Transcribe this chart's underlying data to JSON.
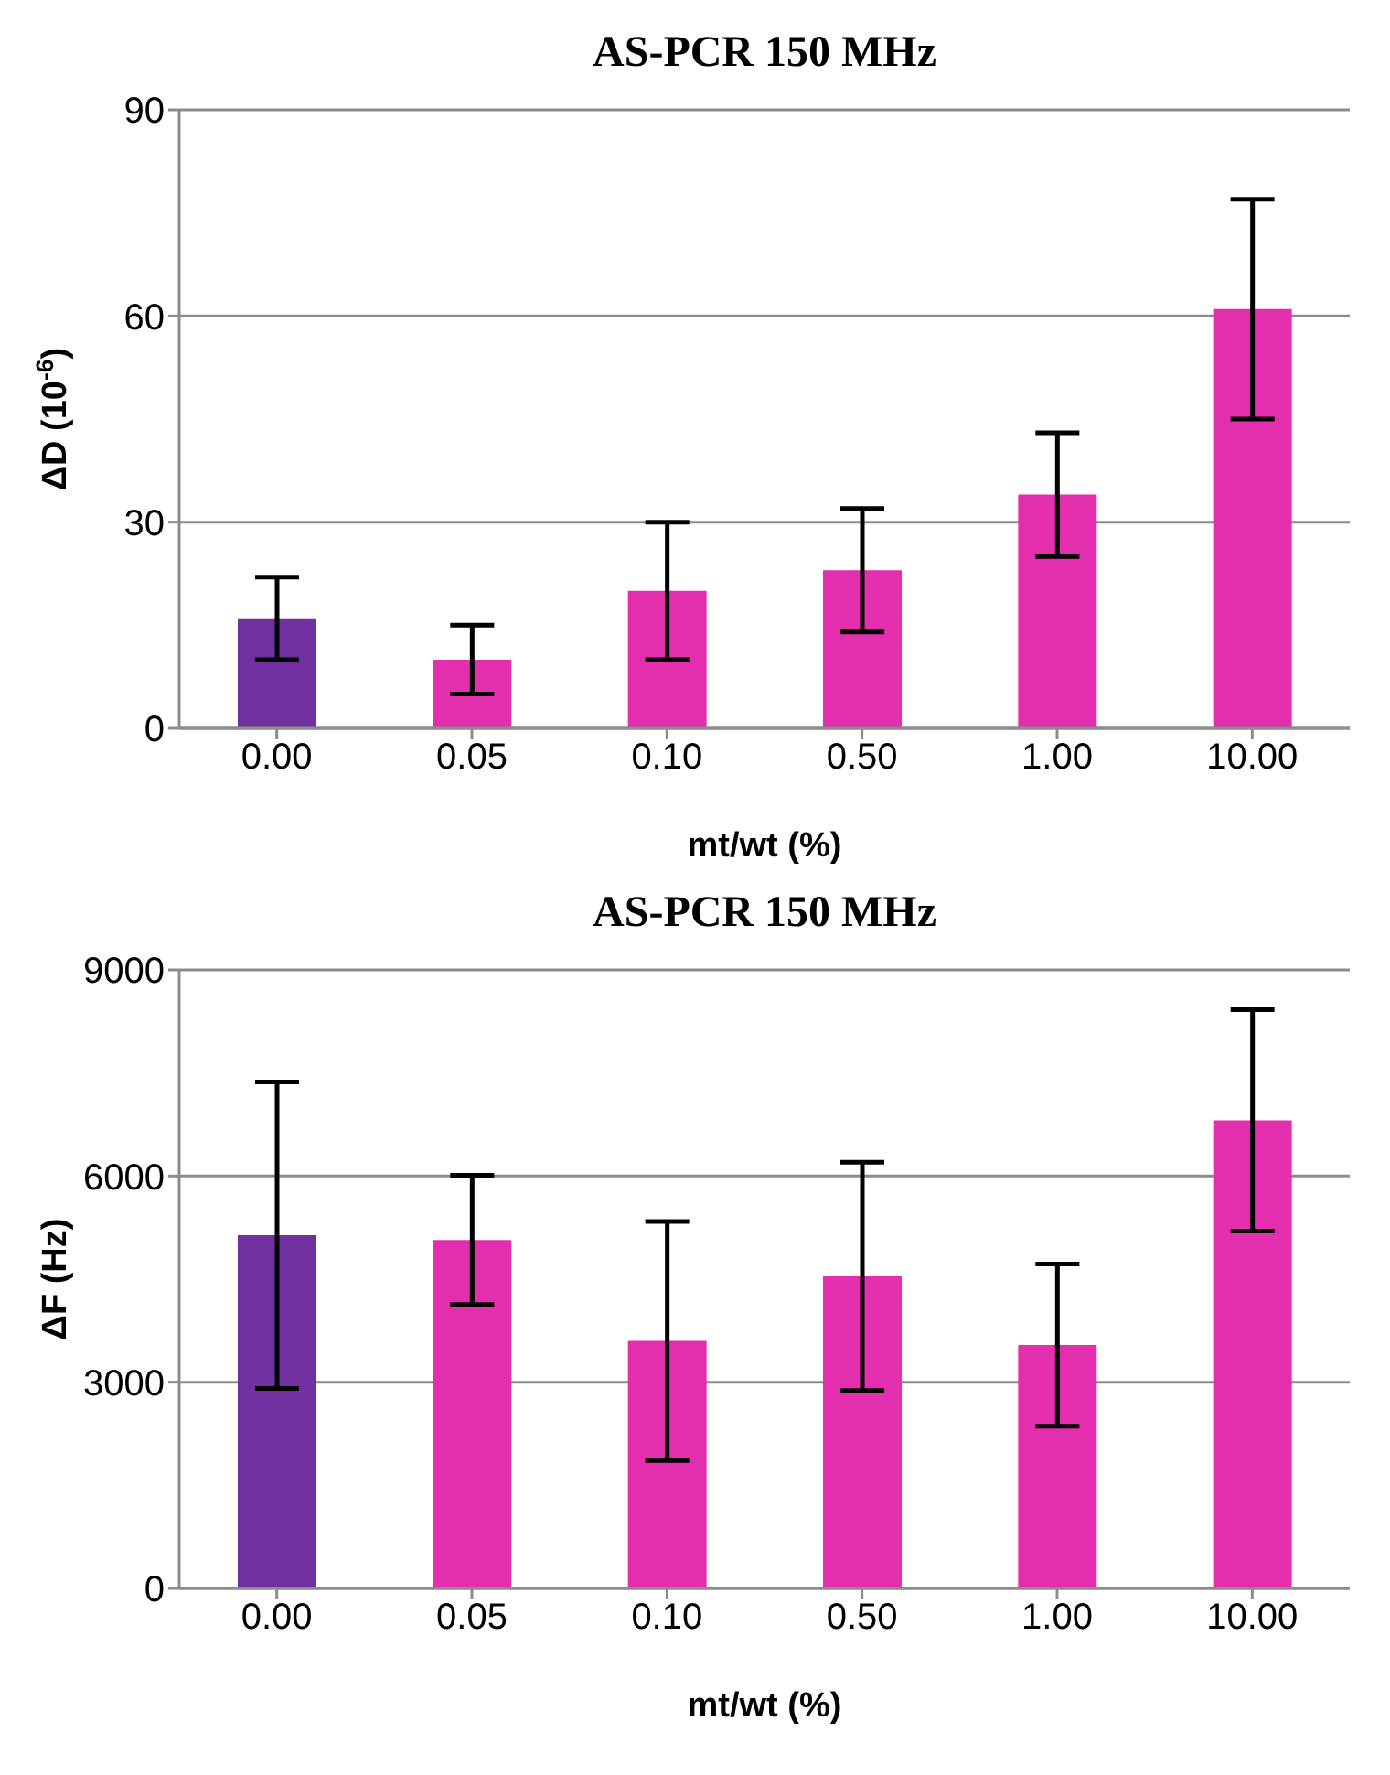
{
  "chart_data": [
    {
      "type": "bar",
      "title": "AS-PCR 150 MHz",
      "xlabel": "mt/wt (%)",
      "ylabel": "ΔD (10$^{-6}$)",
      "categories": [
        "0.00",
        "0.05",
        "0.10",
        "0.50",
        "1.00",
        "10.00"
      ],
      "values": [
        16,
        10,
        20,
        23,
        34,
        61
      ],
      "errors": [
        6,
        5,
        10,
        9,
        9,
        16
      ],
      "colors": [
        "#7030a0",
        "#e32fad",
        "#e32fad",
        "#e32fad",
        "#e32fad",
        "#e32fad"
      ],
      "ylim": [
        0,
        90
      ],
      "yticks": [
        0,
        30,
        60,
        90
      ],
      "grid": "y"
    },
    {
      "type": "bar",
      "title": "AS-PCR 150 MHz",
      "xlabel": "mt/wt (%)",
      "ylabel": "ΔF (Hz)",
      "categories": [
        "0.00",
        "0.05",
        "0.10",
        "0.50",
        "1.00",
        "10.00"
      ],
      "values": [
        5140,
        5070,
        3600,
        4540,
        3540,
        6810
      ],
      "errors": [
        2230,
        940,
        1740,
        1660,
        1180,
        1610
      ],
      "colors": [
        "#7030a0",
        "#e32fad",
        "#e32fad",
        "#e32fad",
        "#e32fad",
        "#e32fad"
      ],
      "ylim": [
        0,
        9000
      ],
      "yticks": [
        0,
        3000,
        6000,
        9000
      ],
      "grid": "y"
    }
  ]
}
